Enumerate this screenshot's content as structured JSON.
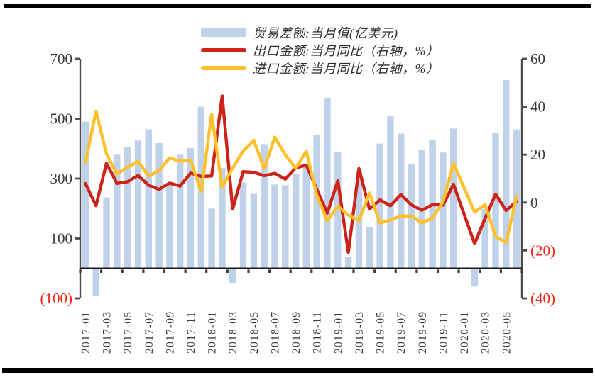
{
  "legend": [
    {
      "label": "贸易差额:当月值(亿美元)",
      "type": "bar",
      "color": "#BFD2EA"
    },
    {
      "label": "出口金额:当月同比（右轴，%）",
      "type": "line",
      "color": "#CE2318"
    },
    {
      "label": "进口金额:当月同比（右轴，%）",
      "type": "line",
      "color": "#FFC12B"
    }
  ],
  "chart_data": {
    "type": "bar+line combo, dual axis",
    "x": [
      "2017-01",
      "2017-02",
      "2017-03",
      "2017-04",
      "2017-05",
      "2017-06",
      "2017-07",
      "2017-08",
      "2017-09",
      "2017-10",
      "2017-11",
      "2017-12",
      "2018-01",
      "2018-02",
      "2018-03",
      "2018-04",
      "2018-05",
      "2018-06",
      "2018-07",
      "2018-08",
      "2018-09",
      "2018-10",
      "2018-11",
      "2018-12",
      "2019-01",
      "2019-02",
      "2019-03",
      "2019-04",
      "2019-05",
      "2019-06",
      "2019-07",
      "2019-08",
      "2019-09",
      "2019-10",
      "2019-11",
      "2019-12",
      "2020-01",
      "2020-02",
      "2020-03",
      "2020-04",
      "2020-05",
      "2020-06"
    ],
    "x_tick_labels": [
      "2017-01",
      "2017-03",
      "2017-05",
      "2017-07",
      "2017-09",
      "2017-11",
      "2018-01",
      "2018-03",
      "2018-05",
      "2018-07",
      "2018-09",
      "2018-11",
      "2019-01",
      "2019-03",
      "2019-05",
      "2019-07",
      "2019-09",
      "2019-11",
      "2020-01",
      "2020-03",
      "2020-05"
    ],
    "series": [
      {
        "name": "贸易差额:当月值(亿美元)",
        "type": "bar",
        "axis": "left",
        "color": "#BFD2EA",
        "values": [
          490,
          -92,
          237,
          380,
          405,
          427,
          465,
          418,
          286,
          380,
          402,
          540,
          200,
          335,
          -50,
          287,
          249,
          415,
          280,
          278,
          316,
          340,
          447,
          570,
          390,
          40,
          325,
          138,
          417,
          510,
          450,
          348,
          396,
          428,
          387,
          467,
          null,
          -60,
          199,
          453,
          629,
          464
        ]
      },
      {
        "name": "出口金额:当月同比（右轴，%）",
        "type": "line",
        "axis": "right",
        "color": "#CE2318",
        "values": [
          7.9,
          -1.3,
          16.4,
          8.0,
          8.7,
          11.3,
          7.2,
          5.5,
          8.1,
          6.9,
          12.3,
          10.9,
          11.1,
          44.5,
          -2.7,
          12.9,
          12.6,
          11.2,
          12.2,
          9.8,
          14.5,
          15.6,
          5.4,
          -4.4,
          9.1,
          -20.8,
          14.2,
          -2.7,
          1.1,
          -1.3,
          3.3,
          -1.0,
          -3.2,
          -0.9,
          -1.1,
          7.6,
          null,
          -17.2,
          -6.6,
          3.5,
          -3.3,
          0.5
        ]
      },
      {
        "name": "进口金额:当月同比（右轴，%）",
        "type": "line",
        "axis": "right",
        "color": "#FFC12B",
        "values": [
          16.7,
          38.1,
          20.3,
          11.9,
          14.8,
          17.2,
          11.0,
          13.3,
          18.7,
          17.2,
          17.7,
          4.5,
          36.8,
          6.3,
          14.4,
          21.5,
          26.0,
          14.1,
          27.3,
          19.9,
          14.3,
          21.4,
          3.0,
          -7.6,
          -1.5,
          -5.2,
          -7.6,
          4.0,
          -8.5,
          -7.3,
          -5.6,
          -5.6,
          -8.5,
          -6.4,
          0.3,
          16.3,
          null,
          -4.0,
          -0.9,
          -14.2,
          -16.7,
          2.7
        ]
      }
    ],
    "left_axis": {
      "min": -100,
      "max": 700,
      "ticks": [
        700,
        500,
        300,
        100,
        -100
      ],
      "tick_labels": [
        "700",
        "500",
        "300",
        "100",
        "(100)"
      ]
    },
    "right_axis": {
      "min": -40,
      "max": 60,
      "ticks": [
        60,
        40,
        20,
        0,
        -20,
        -40
      ],
      "tick_labels": [
        "60",
        "40",
        "20",
        "0",
        "(20)",
        "(40)"
      ]
    },
    "grid": "off",
    "legend_position": "top-center",
    "colors": {
      "axis_line": "#4d4d4d",
      "zero_line": "#1a1a1a",
      "tick_label": "#3b3b3b",
      "negative_tick_label": "#F0281E",
      "x_tick_label": "#3f3f3f"
    }
  }
}
